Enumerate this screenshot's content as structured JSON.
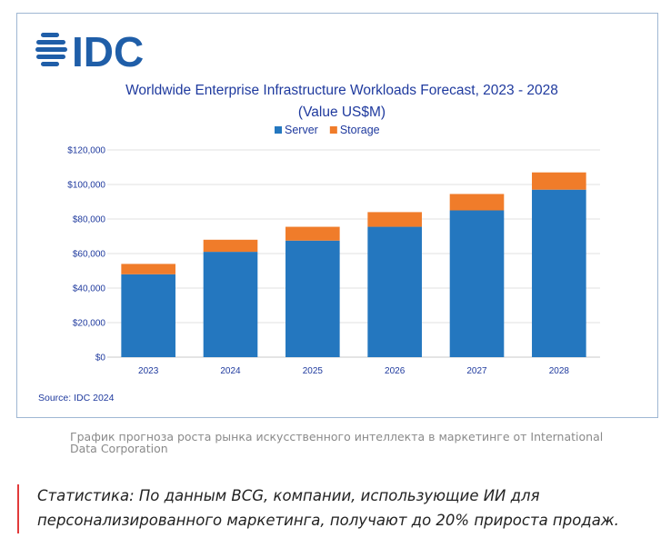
{
  "logo_text": "IDC",
  "colors": {
    "server": "#2477bf",
    "storage": "#f07c2a",
    "title": "#1f3a9e",
    "logo": "#1f5ea8",
    "accent_bar": "#e23a3a"
  },
  "chart_data": {
    "type": "bar",
    "stacked": true,
    "title": "Worldwide Enterprise Infrastructure Workloads Forecast, 2023 - 2028",
    "subtitle": "(Value US$M)",
    "categories": [
      "2023",
      "2024",
      "2025",
      "2026",
      "2027",
      "2028"
    ],
    "series": [
      {
        "name": "Server",
        "values": [
          48000,
          61000,
          67500,
          75500,
          85000,
          97000
        ]
      },
      {
        "name": "Storage",
        "values": [
          6000,
          7000,
          8000,
          8500,
          9500,
          10000
        ]
      }
    ],
    "yticks": [
      "$0",
      "$20,000",
      "$40,000",
      "$60,000",
      "$80,000",
      "$100,000",
      "$120,000"
    ],
    "ylim": [
      0,
      120000
    ],
    "grid": true,
    "legend_position": "top-center",
    "source": "Source: IDC 2024"
  },
  "caption": "График прогноза роста рынка искусственного интеллекта в маркетинге от International Data Corporation",
  "quote": "Статистика: По данным BCG, компании, использующие ИИ для персонализированного маркетинга, получают до 20% прироста продаж."
}
